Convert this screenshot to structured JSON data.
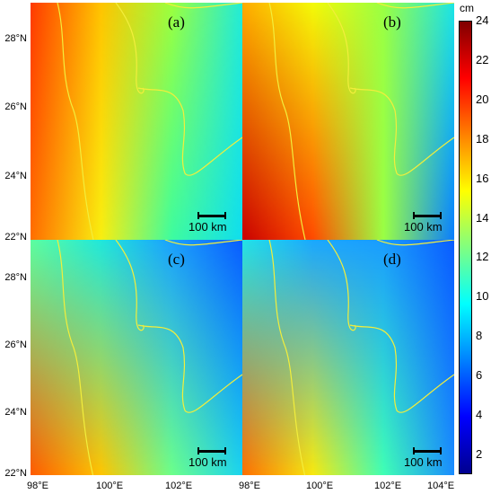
{
  "panels": [
    {
      "label": "(a)",
      "stops": [
        [
          "#ff3a00",
          "#ffc400",
          "#9cff3e",
          "#22ecd8"
        ],
        [
          "#ff6e00",
          "#f9ee10",
          "#3dfca0",
          "#10ddee"
        ]
      ]
    },
    {
      "label": "(b)",
      "stops": [
        [
          "#ffac00",
          "#f4fa08",
          "#9aff44",
          "#1ce6e6"
        ],
        [
          "#c80000",
          "#ff4a00",
          "#9aff44",
          "#0a7cff"
        ]
      ]
    },
    {
      "label": "(c)",
      "stops": [
        [
          "#5cffa0",
          "#20e8dc",
          "#1aa0ff",
          "#0a5cff"
        ],
        [
          "#ff5a00",
          "#ffc400",
          "#6cff8a",
          "#1ad4f0"
        ]
      ]
    },
    {
      "label": "(d)",
      "stops": [
        [
          "#22e4e8",
          "#1aa8ff",
          "#1a9cff",
          "#0a5cff"
        ],
        [
          "#ff6e00",
          "#f8e80e",
          "#40ffb4",
          "#1a8cff"
        ]
      ]
    }
  ],
  "scalebar_label": "100 km",
  "lat_ticks": [
    "28°N",
    "26°N",
    "24°N",
    "22°N"
  ],
  "lon_ticks": [
    "98°E",
    "100°E",
    "102°E",
    "104°E"
  ],
  "colorbar": {
    "unit": "cm",
    "ticks": [
      "24",
      "22",
      "20",
      "18",
      "16",
      "14",
      "12",
      "10",
      "8",
      "6",
      "4",
      "2"
    ],
    "range": [
      1,
      24
    ]
  },
  "border_color": "#f2ee3c"
}
